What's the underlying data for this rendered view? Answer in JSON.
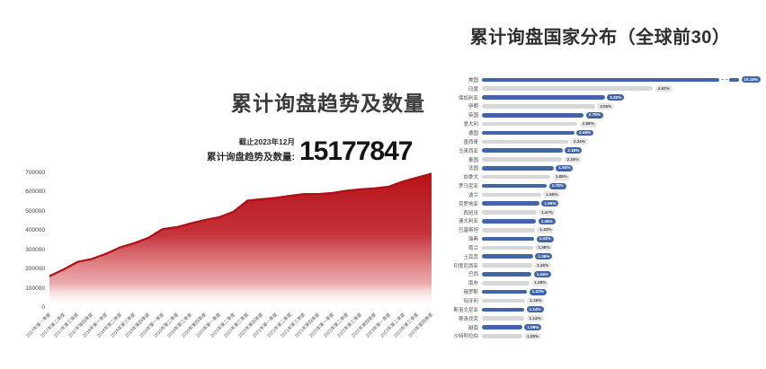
{
  "left_panel": {
    "title": "累计询盘趋势及数量",
    "asof": "截止2023年12月",
    "count_label": "累计询盘趋势及数量:",
    "count_value": "15177847"
  },
  "right_panel": {
    "title": "累计询盘国家分布（全球前30）"
  },
  "colors": {
    "area_line": "#ad1016",
    "area_gradient": [
      "#b81219",
      "#c5333a",
      "rgba(215,90,96,0.5)",
      "rgba(255,255,255,0)"
    ],
    "bar_blue": "#4165a8",
    "bar_gray": "#d7d7d9",
    "pill_blue_bg": "#4165a8",
    "pill_blue_text": "#ffffff",
    "pill_gray_bg": "#e6e6e8",
    "pill_gray_text": "#4a4a4a"
  },
  "chart_data": [
    {
      "type": "area",
      "title": "累计询盘趋势及数量",
      "xlabel": "",
      "ylabel": "",
      "ylim": [
        0,
        700000
      ],
      "yticks": [
        0,
        100000,
        200000,
        300000,
        400000,
        500000,
        600000,
        700000
      ],
      "grid": false,
      "legend": "none",
      "x": [
        "2017年第一季度",
        "2017年第二季度",
        "2017年第三季度",
        "2017年第四季度",
        "2018年第一季度",
        "2018年第二季度",
        "2018年第三季度",
        "2018年第四季度",
        "2019年第一季度",
        "2019年第二季度",
        "2019年第三季度",
        "2019年第四季度",
        "2020年第一季度",
        "2020年第二季度",
        "2020年第三季度",
        "2020年第四季度",
        "2021年第一季度",
        "2021年第二季度",
        "2021年第三季度",
        "2021年第四季度",
        "2022年第一季度",
        "2022年第二季度",
        "2022年第三季度",
        "2022年第四季度",
        "2023年第一季度",
        "2023年第二季度",
        "2023年第三季度",
        "2023年第四季度"
      ],
      "values": [
        165000,
        200000,
        240000,
        255000,
        282000,
        315000,
        337000,
        365000,
        410000,
        420000,
        440000,
        458000,
        472000,
        500000,
        558000,
        565000,
        572000,
        583000,
        592000,
        592000,
        598000,
        610000,
        617000,
        622000,
        631000,
        658000,
        678000,
        698000
      ]
    },
    {
      "type": "bar",
      "orientation": "horizontal",
      "title": "累计询盘国家分布（全球前30）",
      "unit": "%",
      "legend": "none",
      "axis_break_first": true,
      "categories": [
        "美国",
        "印度",
        "保加利亚",
        "伊朗",
        "英国",
        "意大利",
        "德国",
        "墨西哥",
        "马来西亚",
        "泰国",
        "法国",
        "加拿大",
        "罗马尼亚",
        "波兰",
        "克罗地亚",
        "西班牙",
        "澳大利亚",
        "巴基斯坦",
        "瑞典",
        "荷兰",
        "土耳其",
        "印度尼西亚",
        "巴西",
        "南非",
        "俄罗斯",
        "匈牙利",
        "斯洛文尼亚",
        "斯洛伐克",
        "越南",
        "沙特阿拉伯"
      ],
      "values": [
        10.19,
        4.62,
        3.32,
        3.05,
        2.75,
        2.58,
        2.49,
        2.34,
        2.18,
        2.16,
        1.94,
        1.85,
        1.75,
        1.6,
        1.55,
        1.47,
        1.46,
        1.43,
        1.41,
        1.38,
        1.38,
        1.35,
        1.34,
        1.28,
        1.22,
        1.16,
        1.14,
        1.14,
        1.09,
        1.08
      ],
      "labels": [
        "10.19%",
        "4.62%",
        "3.32%",
        "3.05%",
        "2.75%",
        "2.58%",
        "2.49%",
        "2.34%",
        "2.18%",
        "2.16%",
        "1.94%",
        "1.85%",
        "1.75%",
        "1.60%",
        "1.55%",
        "1.47%",
        "1.46%",
        "1.43%",
        "1.41%",
        "1.38%",
        "1.38%",
        "1.35%",
        "1.34%",
        "1.28%",
        "1.22%",
        "1.16%",
        "1.14%",
        "1.14%",
        "1.09%",
        "1.08%"
      ]
    }
  ]
}
